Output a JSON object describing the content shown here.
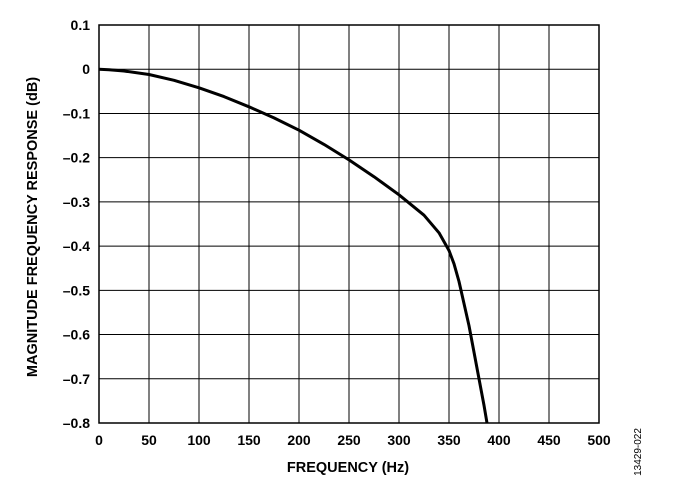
{
  "chart_data": {
    "type": "line",
    "title": "",
    "xlabel": "FREQUENCY (Hz)",
    "ylabel": "MAGNITUDE FREQUENCY RESPONSE (dB)",
    "xlim": [
      0,
      500
    ],
    "ylim": [
      -0.8,
      0.1
    ],
    "xticks": [
      0,
      50,
      100,
      150,
      200,
      250,
      300,
      350,
      400,
      450,
      500
    ],
    "xtick_labels": [
      "0",
      "50",
      "100",
      "150",
      "200",
      "250",
      "300",
      "350",
      "400",
      "450",
      "500"
    ],
    "yticks": [
      0.1,
      0,
      -0.1,
      -0.2,
      -0.3,
      -0.4,
      -0.5,
      -0.6,
      -0.7,
      -0.8
    ],
    "ytick_labels": [
      "0.1",
      "0",
      "–0.1",
      "–0.2",
      "–0.3",
      "–0.4",
      "–0.5",
      "–0.6",
      "–0.7",
      "–0.8"
    ],
    "grid": true,
    "series": [
      {
        "color": "#000000",
        "x": [
          0,
          10,
          25,
          50,
          75,
          100,
          125,
          150,
          175,
          200,
          225,
          250,
          275,
          300,
          325,
          340,
          350,
          355,
          360,
          365,
          370,
          375,
          380,
          385,
          388
        ],
        "y": [
          0,
          -0.001,
          -0.004,
          -0.012,
          -0.025,
          -0.042,
          -0.062,
          -0.085,
          -0.11,
          -0.138,
          -0.17,
          -0.205,
          -0.243,
          -0.284,
          -0.33,
          -0.37,
          -0.41,
          -0.44,
          -0.48,
          -0.53,
          -0.58,
          -0.64,
          -0.7,
          -0.76,
          -0.8
        ]
      }
    ],
    "figure_id": "13429-022"
  }
}
